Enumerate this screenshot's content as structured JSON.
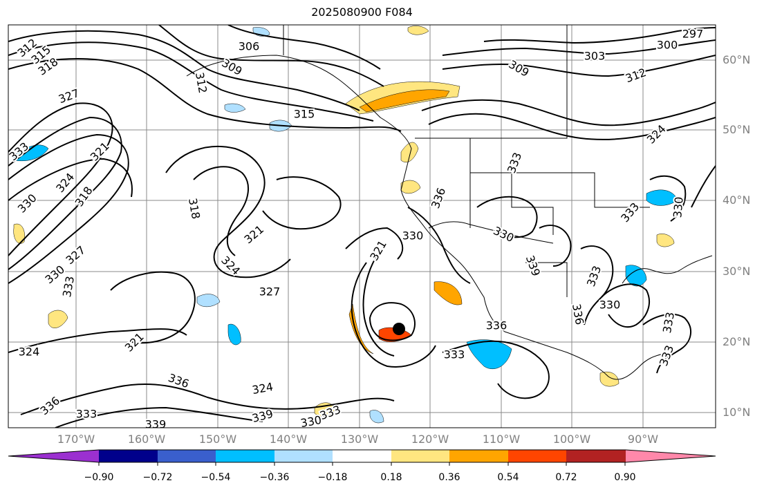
{
  "title": "2025080900 F084",
  "lat_labels": [
    "60°N",
    "50°N",
    "40°N",
    "30°N",
    "20°N",
    "10°N"
  ],
  "lon_labels": [
    "170°W",
    "160°W",
    "150°W",
    "140°W",
    "130°W",
    "120°W",
    "110°W",
    "100°W",
    "90°W"
  ],
  "colorbar": {
    "ticks": [
      "−0.90",
      "−0.72",
      "−0.54",
      "−0.36",
      "−0.18",
      "0.18",
      "0.36",
      "0.54",
      "0.72",
      "0.90"
    ],
    "colors": [
      "#9b30d0",
      "#00008b",
      "#3a5fcd",
      "#00bfff",
      "#b0e0ff",
      "#ffffff",
      "#ffe680",
      "#ffa500",
      "#ff4500",
      "#b22222",
      "#ff88aa"
    ]
  },
  "contour_labels": [
    "312",
    "315",
    "318",
    "327",
    "306",
    "309",
    "312",
    "315",
    "309",
    "303",
    "300",
    "297",
    "312",
    "324",
    "333",
    "321",
    "324",
    "318",
    "330",
    "318",
    "321",
    "324",
    "327",
    "330",
    "327",
    "333",
    "321",
    "324",
    "336",
    "336",
    "333",
    "339",
    "339",
    "324",
    "330",
    "333",
    "330",
    "330",
    "336",
    "333",
    "339",
    "336",
    "333",
    "330",
    "333",
    "333",
    "333",
    "330",
    "333",
    "336",
    "321"
  ],
  "marker": {
    "name": "storm-center"
  }
}
